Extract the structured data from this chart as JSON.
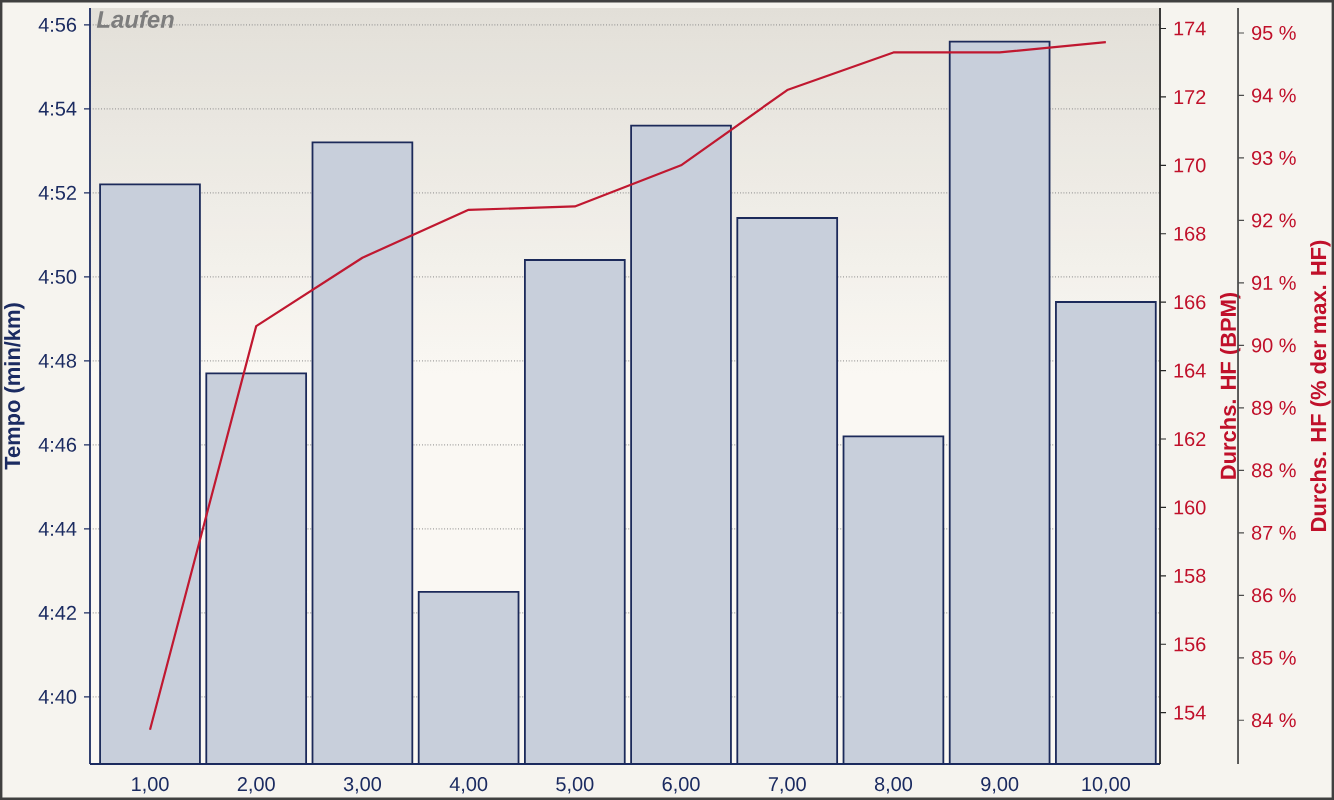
{
  "chart_data": {
    "type": "bar",
    "title": "Laufen",
    "ylabel": "Tempo (min/km)",
    "y2label": "Durchs. HF (BPM)",
    "y3label": "Durchs. HF (% der max. HF)",
    "categories": [
      "1,00",
      "2,00",
      "3,00",
      "4,00",
      "5,00",
      "6,00",
      "7,00",
      "8,00",
      "9,00",
      "10,00"
    ],
    "ylim": [
      278.4,
      296.4
    ],
    "yticks": [
      {
        "value": 280,
        "label": "4:40"
      },
      {
        "value": 282,
        "label": "4:42"
      },
      {
        "value": 284,
        "label": "4:44"
      },
      {
        "value": 286,
        "label": "4:46"
      },
      {
        "value": 288,
        "label": "4:48"
      },
      {
        "value": 290,
        "label": "4:50"
      },
      {
        "value": 292,
        "label": "4:52"
      },
      {
        "value": 294,
        "label": "4:54"
      },
      {
        "value": 296,
        "label": "4:56"
      }
    ],
    "y2lim": [
      152.5,
      174.6
    ],
    "y2ticks": [
      154,
      156,
      158,
      160,
      162,
      164,
      166,
      168,
      170,
      172,
      174
    ],
    "y3lim": [
      83.3,
      95.4
    ],
    "y3ticks": [
      {
        "value": 84,
        "label": "84 %"
      },
      {
        "value": 85,
        "label": "85 %"
      },
      {
        "value": 86,
        "label": "86 %"
      },
      {
        "value": 87,
        "label": "87 %"
      },
      {
        "value": 88,
        "label": "88 %"
      },
      {
        "value": 89,
        "label": "89 %"
      },
      {
        "value": 90,
        "label": "90 %"
      },
      {
        "value": 91,
        "label": "91 %"
      },
      {
        "value": 92,
        "label": "92 %"
      },
      {
        "value": 93,
        "label": "93 %"
      },
      {
        "value": 94,
        "label": "94 %"
      },
      {
        "value": 95,
        "label": "95 %"
      }
    ],
    "grid": "y",
    "series": [
      {
        "color": "#c8cfdb",
        "values": [
          292.2,
          287.7,
          293.2,
          282.5,
          290.4,
          293.6,
          291.4,
          286.2,
          295.6,
          289.4
        ]
      },
      {
        "type": "line",
        "axis": "y2",
        "color": "#c01830",
        "values": [
          153.5,
          165.3,
          167.3,
          168.7,
          168.8,
          170.0,
          172.2,
          173.3,
          173.3,
          173.6
        ]
      }
    ]
  }
}
